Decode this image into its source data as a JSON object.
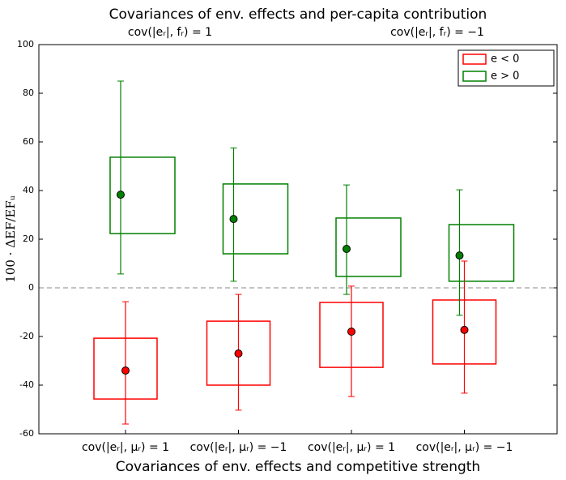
{
  "chart_data": {
    "type": "box",
    "title": "Covariances of env. effects and per-capita contribution",
    "top_categories": [
      "cov(|eᵣ|, fᵣ) = 1",
      "cov(|eᵣ|, fᵣ) = −1"
    ],
    "xlabel": "Covariances of env. effects and competitive strength",
    "ylabel": "100 · ΔEF/EFᵤ",
    "categories": [
      "cov(|eᵣ|, μᵣ) = 1",
      "cov(|eᵣ|, μᵣ) = −1",
      "cov(|eᵣ|, μᵣ) = 1",
      "cov(|eᵣ|, μᵣ) = −1"
    ],
    "ylim": [
      -60,
      100
    ],
    "yticks": [
      -60,
      -40,
      -20,
      0,
      20,
      40,
      60,
      80,
      100
    ],
    "hline": 0,
    "legend": "upper right",
    "series": [
      {
        "name": "e < 0",
        "color": "#ff0000",
        "marker_color": "#ff0000",
        "box_high": [
          -20.7,
          -13.7,
          -6,
          -5
        ],
        "box_low": [
          -45.7,
          -40,
          -32.7,
          -31.3
        ],
        "mean": [
          -34,
          -27,
          -18,
          -17.3
        ],
        "err_high": [
          -5.7,
          -2.7,
          0.7,
          11
        ],
        "err_low": [
          -56,
          -50.3,
          -44.7,
          -43.3
        ]
      },
      {
        "name": "e > 0",
        "color": "#008000",
        "marker_color": "#008000",
        "box_high": [
          53.7,
          42.7,
          28.7,
          26
        ],
        "box_low": [
          22.3,
          14,
          4.7,
          2.7
        ],
        "mean": [
          38.3,
          28.3,
          16,
          13.3
        ],
        "err_high": [
          85,
          57.5,
          42.3,
          40.3
        ],
        "err_low": [
          5.7,
          2.7,
          -2.7,
          -11.3
        ]
      }
    ]
  }
}
